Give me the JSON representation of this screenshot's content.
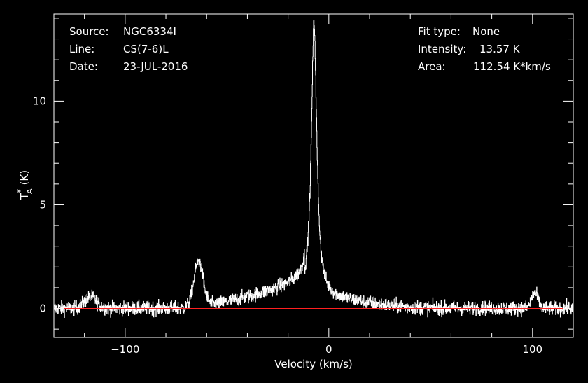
{
  "info_left": [
    {
      "label": "Source:",
      "value": "NGC6334I"
    },
    {
      "label": "Line:",
      "value": "CS(7-6)L"
    },
    {
      "label": "Date:",
      "value": "23-JUL-2016"
    }
  ],
  "info_right": [
    {
      "label": "Fit type:",
      "value": "None"
    },
    {
      "label": "Intensity:",
      "value": "13.57 K"
    },
    {
      "label": "Area:",
      "value": "112.54 K*km/s"
    }
  ],
  "colors": {
    "background": "#000000",
    "axes": "#ffffff",
    "spectrum": "#ffffff",
    "baseline": "#ff2020"
  },
  "chart_data": {
    "type": "line",
    "xlabel": "Velocity (km/s)",
    "ylabel_main": "T",
    "ylabel_super": "*",
    "ylabel_sub": "A",
    "ylabel_unit": "(K)",
    "xlim": [
      -135,
      120
    ],
    "ylim": [
      -1.4,
      14.2
    ],
    "x_ticks": [
      -100,
      0,
      100
    ],
    "x_tick_labels": [
      "−100",
      "0",
      "100"
    ],
    "y_ticks": [
      0,
      5,
      10
    ],
    "y_tick_labels": [
      "0",
      "5",
      "10"
    ],
    "baseline_value": 0,
    "noise_sigma": 0.17,
    "components": [
      {
        "center": -7.3,
        "peak": 13.3,
        "width": 1.6,
        "shape": "lorentzian"
      },
      {
        "center": -7.3,
        "peak": 0.5,
        "width": 22,
        "shape": "gaussian"
      },
      {
        "center": -64,
        "peak": 2.25,
        "width": 2.3,
        "shape": "gaussian"
      },
      {
        "center": -117,
        "peak": 0.55,
        "width": 3.0,
        "shape": "gaussian"
      },
      {
        "center": 101,
        "peak": 0.75,
        "width": 1.6,
        "shape": "gaussian"
      }
    ],
    "plateau": {
      "from": -60,
      "to": -12,
      "start": 0.1,
      "end": 0.75
    }
  }
}
